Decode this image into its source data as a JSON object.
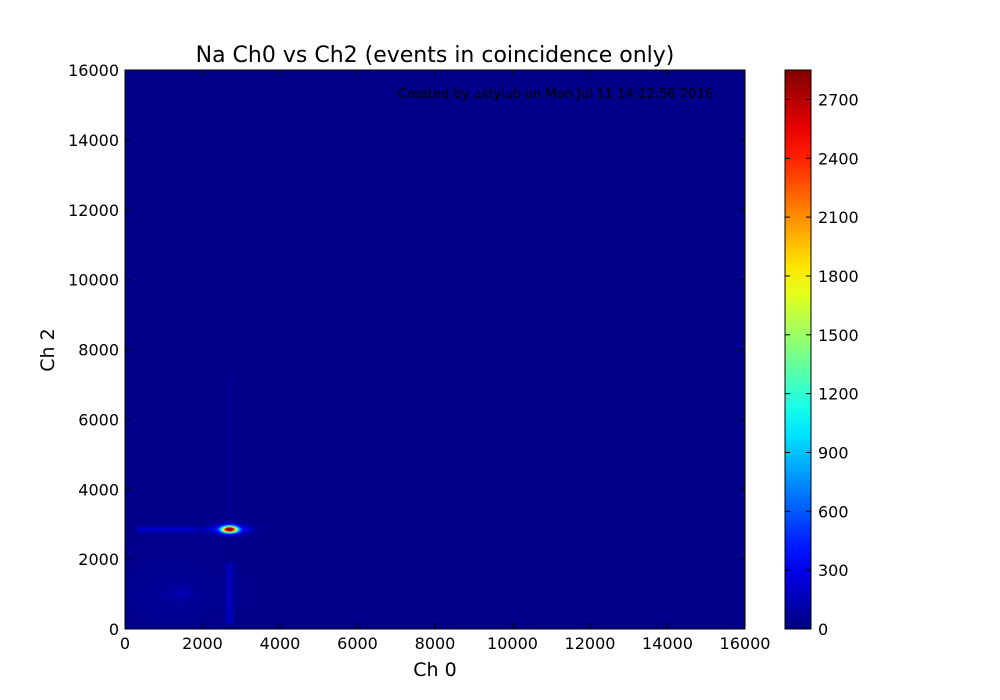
{
  "chart_data": {
    "type": "heatmap",
    "title": "Na Ch0 vs Ch2 (events in coincidence only)",
    "xlabel": "Ch 0",
    "ylabel": "Ch 2",
    "xlim": [
      0,
      16000
    ],
    "ylim": [
      0,
      16000
    ],
    "x_ticks": [
      0,
      2000,
      4000,
      6000,
      8000,
      10000,
      12000,
      14000,
      16000
    ],
    "y_ticks": [
      0,
      2000,
      4000,
      6000,
      8000,
      10000,
      12000,
      14000,
      16000
    ],
    "annotation": "Created by astylab on Mon Jul 11 14:12:56 2016",
    "colorbar": {
      "min": 0,
      "max": 2850,
      "ticks": [
        0,
        300,
        600,
        900,
        1200,
        1500,
        1800,
        2100,
        2400,
        2700
      ],
      "colormap": "jet"
    },
    "background_value": 25,
    "features": [
      {
        "kind": "peak",
        "x": 2700,
        "y": 2850,
        "sx": 130,
        "sy": 65,
        "value": 2820
      },
      {
        "kind": "peak_halo",
        "x": 2700,
        "y": 2850,
        "sx": 320,
        "sy": 110,
        "value": 350
      },
      {
        "kind": "horizontal_band",
        "x0": 300,
        "x1": 1800,
        "y": 2850,
        "sy": 55,
        "value": 190
      },
      {
        "kind": "horizontal_band",
        "x0": 1800,
        "x1": 3300,
        "y": 2850,
        "sy": 45,
        "value": 110
      },
      {
        "kind": "vertical_band",
        "x": 2700,
        "sx": 70,
        "y0": 150,
        "y1": 1900,
        "value": 150
      },
      {
        "kind": "vertical_band",
        "x": 2700,
        "sx": 60,
        "y0": 3200,
        "y1": 7200,
        "value": 40
      },
      {
        "kind": "diffuse",
        "x": 1200,
        "y": 1000,
        "sx": 900,
        "sy": 700,
        "value": 50
      },
      {
        "kind": "diffuse",
        "x": 1500,
        "y": 1000,
        "sx": 180,
        "sy": 120,
        "value": 60
      }
    ]
  }
}
